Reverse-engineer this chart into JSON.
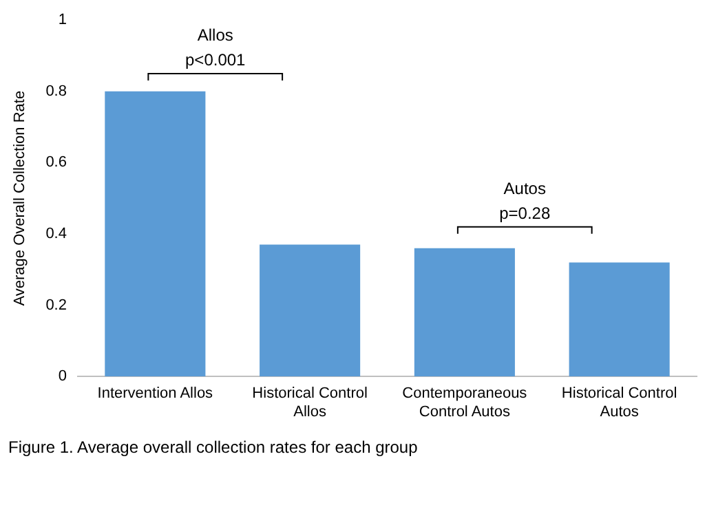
{
  "chart_data": {
    "type": "bar",
    "ylabel": "Average Overall Collection Rate",
    "categories": [
      "Intervention Allos",
      "Historical Control Allos",
      "Contemporaneous Control Autos",
      "Historical Control Autos"
    ],
    "values": [
      0.8,
      0.37,
      0.36,
      0.32
    ],
    "color": "#5b9bd5",
    "ylim": [
      0,
      1
    ],
    "yticks": [
      0,
      0.2,
      0.4,
      0.6,
      0.8,
      1
    ],
    "grid": false,
    "legend": false,
    "annotations": [
      "Allos",
      "p<0.001",
      "Autos",
      "p=0.28",
      "Figure 1. Average overall collection rates for each group"
    ]
  }
}
